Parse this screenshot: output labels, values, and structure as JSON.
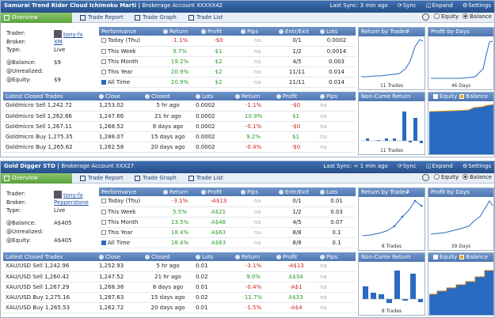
{
  "common": {
    "tabs": {
      "overview": "Overview",
      "trade_report": "Trade Report",
      "trade_graph": "Trade Graph",
      "trade_list": "Trade List"
    },
    "sync": "Sync",
    "expand": "Expand",
    "settings": "Settings",
    "equity": "Equity",
    "balance": "Balance",
    "labels": {
      "trader": "Trader:",
      "broker": "Broker:",
      "type": "Type:",
      "balance": "@Balance:",
      "unrealized": "@Unrealized:",
      "equity": "@Equity:"
    },
    "perf_headers": [
      "Performance",
      "Return",
      "Profit",
      "Pips",
      "Entr/Exit",
      "Lots"
    ],
    "closed_headers": [
      "Latest Closed Trades",
      "Close",
      "Closed",
      "Lots",
      "Return",
      "Profit",
      "Pips"
    ],
    "chart_titles": {
      "by_trade": "Return by Trade#",
      "by_days": "Profit by Days",
      "non_cume": "Non-Cume Return"
    },
    "colors": {
      "header": "#2f5d9c",
      "green_tab": "#6fb34f",
      "bar_blue": "#2a6ac0",
      "equity_line": "#ffffff",
      "balance_fill": "#2a6ac0",
      "orange": "#f0a020"
    }
  },
  "systems": [
    {
      "title": "Samurai Trend Rider Cloud Ichimoku Marti",
      "account": "Brokerage Account XXXXX42",
      "last_sync": "Last Sync: 3 min ago",
      "trader": "tony-fx",
      "broker": "XM",
      "type": "Live",
      "balance": "$9",
      "unrealized": "",
      "equity": "$9",
      "performance": [
        {
          "period": "Today (Thu)",
          "ret": "-1.1%",
          "profit": "-$0",
          "pips": "na",
          "entr": "0/1",
          "lots": "0.0002"
        },
        {
          "period": "This Week",
          "ret": "9.7%",
          "profit": "$1",
          "pips": "na",
          "entr": "1/2",
          "lots": "0.0014"
        },
        {
          "period": "This Month",
          "ret": "19.2%",
          "profit": "$2",
          "pips": "na",
          "entr": "4/5",
          "lots": "0.003"
        },
        {
          "period": "This Year",
          "ret": "20.9%",
          "profit": "$2",
          "pips": "na",
          "entr": "11/11",
          "lots": "0.014"
        },
        {
          "period": "All Time",
          "ret": "20.9%",
          "profit": "$2",
          "pips": "na",
          "entr": "11/11",
          "lots": "0.014"
        }
      ],
      "closed": [
        {
          "trade": "Goldmicro Sell 1,242.72",
          "close": "1,253.02",
          "closed": "5 hr ago",
          "lots": "0.0002",
          "ret": "-1.1%",
          "profit": "-$0",
          "pips": "na"
        },
        {
          "trade": "Goldmicro Sell 1,262.66",
          "close": "1,247.66",
          "closed": "21 hr ago",
          "lots": "0.0002",
          "ret": "10.9%",
          "profit": "$1",
          "pips": "na"
        },
        {
          "trade": "Goldmicro Sell 1,267.11",
          "close": "1,268.52",
          "closed": "8 days ago",
          "lots": "0.0002",
          "ret": "-0.1%",
          "profit": "-$0",
          "pips": "na"
        },
        {
          "trade": "Goldmicro Buy 1,275.35",
          "close": "1,288.07",
          "closed": "15 days ago",
          "lots": "0.0002",
          "ret": "9.2%",
          "profit": "$1",
          "pips": "na"
        },
        {
          "trade": "Goldmicro Buy 1,265.62",
          "close": "1,262.58",
          "closed": "20 days ago",
          "lots": "0.0002",
          "ret": "-0.4%",
          "profit": "-$0",
          "pips": "na"
        }
      ],
      "trades_caption": "11 Trades",
      "days_caption": "46 Days"
    },
    {
      "title": "Gold Digger STD",
      "account": "Brokerage Account XXX27",
      "last_sync": "Last Sync: < 1 min ago",
      "trader": "tony-fx",
      "broker": "Pepperstone",
      "type": "Live",
      "balance": "A$405",
      "unrealized": "",
      "equity": "A$405",
      "performance": [
        {
          "period": "Today (Thu)",
          "ret": "-3.1%",
          "profit": "-A$13",
          "pips": "na",
          "entr": "0/1",
          "lots": "0.01"
        },
        {
          "period": "This Week",
          "ret": "5.5%",
          "profit": "A$21",
          "pips": "na",
          "entr": "1/2",
          "lots": "0.03"
        },
        {
          "period": "This Month",
          "ret": "13.5%",
          "profit": "A$48",
          "pips": "na",
          "entr": "4/5",
          "lots": "0.07"
        },
        {
          "period": "This Year",
          "ret": "18.4%",
          "profit": "A$63",
          "pips": "na",
          "entr": "8/8",
          "lots": "0.1"
        },
        {
          "period": "All Time",
          "ret": "18.4%",
          "profit": "A$63",
          "pips": "na",
          "entr": "8/8",
          "lots": "0.1"
        }
      ],
      "closed": [
        {
          "trade": "XAU/USD Sell 1,242.96",
          "close": "1,252.93",
          "closed": "5 hr ago",
          "lots": "0.01",
          "ret": "-3.1%",
          "profit": "-A$13",
          "pips": "na"
        },
        {
          "trade": "XAU/USD Sell 1,260.42",
          "close": "1,247.52",
          "closed": "21 hr ago",
          "lots": "0.02",
          "ret": "9.0%",
          "profit": "A$34",
          "pips": "na"
        },
        {
          "trade": "XAU/USD Sell 1,267.29",
          "close": "1,268.38",
          "closed": "8 days ago",
          "lots": "0.01",
          "ret": "-0.4%",
          "profit": "-A$1",
          "pips": "na"
        },
        {
          "trade": "XAU/USD Buy 1,275.16",
          "close": "1,287.63",
          "closed": "15 days ago",
          "lots": "0.02",
          "ret": "11.7%",
          "profit": "A$33",
          "pips": "na"
        },
        {
          "trade": "XAU/USD Buy 1,265.53",
          "close": "1,262.72",
          "closed": "20 days ago",
          "lots": "0.01",
          "ret": "-1.5%",
          "profit": "-A$4",
          "pips": "na"
        }
      ],
      "trades_caption": "8 Trades",
      "days_caption": "39 Days"
    }
  ]
}
